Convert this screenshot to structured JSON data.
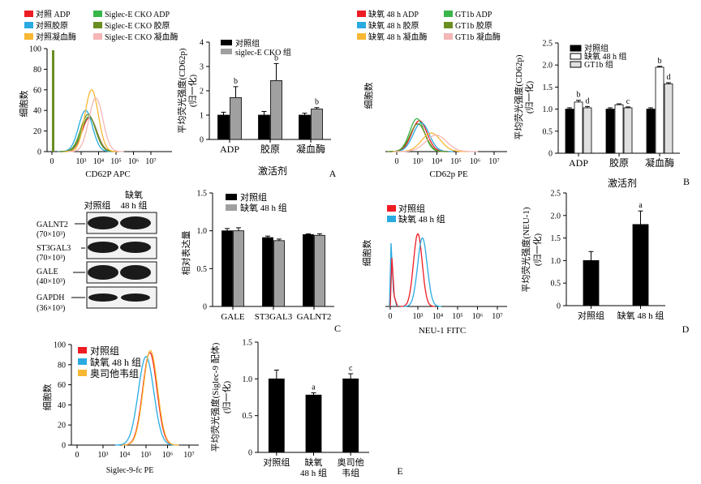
{
  "panels": {
    "A": {
      "letter": "A",
      "flow": {
        "xlabel": "CD62P APC",
        "ylabel": "细胞数",
        "legend": [
          {
            "label": "对照 ADP",
            "color": "#ee1c24"
          },
          {
            "label": "Siglec-E CKO ADP",
            "color": "#39b54a"
          },
          {
            "label": "对照胶原",
            "color": "#29abe2"
          },
          {
            "label": "Siglec-E CKO 胶原",
            "color": "#6b8e23"
          },
          {
            "label": "对照凝血酶",
            "color": "#f7b733"
          },
          {
            "label": "Siglec-E CKO 凝血酶",
            "color": "#f4b6b6"
          }
        ],
        "yticks": [
          "0",
          "20",
          "40",
          "60",
          "80",
          "100"
        ],
        "xticks": [
          "0",
          "10³",
          "10⁴",
          "10⁵",
          "10⁶",
          "10⁷"
        ]
      },
      "bar": {
        "legend": [
          "对照组",
          "siglec-E CKO 组"
        ],
        "ylabel_lines": [
          "平均荧光强度(CD62p)",
          "(归一化)"
        ],
        "yticks": [
          "0",
          "1",
          "2",
          "3",
          "4"
        ],
        "xtitle": "激活剂"
      }
    },
    "B": {
      "letter": "B",
      "flow": {
        "xlabel": "CD62p PE",
        "ylabel": "细胞数",
        "legend": [
          {
            "label": "缺氧 48 h ADP",
            "color": "#ee1c24"
          },
          {
            "label": "GT1b ADP",
            "color": "#39b54a"
          },
          {
            "label": "缺氧 48 h 胶原",
            "color": "#29abe2"
          },
          {
            "label": "GT1b 胶原",
            "color": "#6b8e23"
          },
          {
            "label": "缺氧 48 h 凝血酶",
            "color": "#f7b733"
          },
          {
            "label": "GT1b 凝血酶",
            "color": "#f4b6b6"
          }
        ],
        "xticks": [
          "0",
          "10³",
          "10⁴",
          "10⁵",
          "10⁶",
          "10⁷"
        ]
      },
      "bar": {
        "legend": [
          "对照组",
          "缺氧 48 h 组",
          "GT1b 组"
        ],
        "ylabel_lines": [
          "平均荧光强度(CD62p)",
          "(归一化)"
        ],
        "yticks": [
          "0",
          "0.5",
          "1.0",
          "1.5",
          "2.0",
          "2.5"
        ],
        "xtitle": "激活剂"
      }
    },
    "C": {
      "letter": "C",
      "blot": {
        "col_labels": [
          "对照组",
          "缺氧",
          "48 h 组"
        ],
        "rows": [
          {
            "name": "GALNT2",
            "size": "(70×10³)"
          },
          {
            "name": "ST3GAL3",
            "size": "(70×10³)"
          },
          {
            "name": "GALE",
            "size": "(40×10³)"
          },
          {
            "name": "GAPDH",
            "size": "(36×10³)"
          }
        ]
      },
      "bar": {
        "legend": [
          "对照组",
          "缺氧 48 h 组"
        ],
        "ylabel": "相对表达量",
        "yticks": [
          "0",
          "0.5",
          "1.0",
          "1.5"
        ]
      },
      "flow": {
        "legend": [
          {
            "label": "对照组",
            "color": "#ee1c24"
          },
          {
            "label": "缺氧 48 h 组",
            "color": "#29abe2"
          }
        ],
        "xlabel": "NEU-1 FITC",
        "ylabel": "细胞数",
        "xticks": [
          "0",
          "10³",
          "10⁴",
          "10⁵",
          "10⁶",
          "10⁷"
        ]
      }
    },
    "D": {
      "letter": "D",
      "bar": {
        "ylabel_lines": [
          "平均荧光强度(NEU-1)",
          "(归一化)"
        ],
        "yticks": [
          "0",
          "0.5",
          "1.0",
          "1.5",
          "2.0",
          "2.5"
        ]
      }
    },
    "E": {
      "letter": "E",
      "flow": {
        "legend": [
          {
            "label": "对照组",
            "color": "#ee1c24"
          },
          {
            "label": "缺氧 48 h 组",
            "color": "#29abe2"
          },
          {
            "label": "奥司他韦组",
            "color": "#f7b733"
          }
        ],
        "xlabel": "Siglec-9-fc PE",
        "ylabel": "细胞数",
        "yticks": [
          "0",
          "20",
          "40",
          "60",
          "80",
          "100"
        ],
        "xticks": [
          "0",
          "10³",
          "10⁴",
          "10⁵",
          "10⁶",
          "10⁷"
        ]
      },
      "bar": {
        "ylabel_lines": [
          "平均荧光强度(Siglec-9 配体)",
          "(归一化)"
        ],
        "yticks": [
          "0",
          "0.5",
          "1.0",
          "1.5"
        ]
      }
    }
  },
  "chart_data": [
    {
      "id": "A-bar",
      "type": "bar",
      "categories": [
        "ADP",
        "胶原",
        "凝血酶"
      ],
      "series": [
        {
          "name": "对照组",
          "values": [
            1.0,
            1.0,
            1.0
          ],
          "errors": [
            0.12,
            0.15,
            0.08
          ],
          "color": "#000000"
        },
        {
          "name": "siglec-E CKO 组",
          "values": [
            1.72,
            2.42,
            1.25
          ],
          "errors": [
            0.45,
            0.7,
            0.06
          ],
          "color": "#a0a0a0"
        }
      ],
      "annotations": [
        {
          "series": 1,
          "index": 0,
          "text": "b"
        },
        {
          "series": 1,
          "index": 1,
          "text": "b"
        },
        {
          "series": 1,
          "index": 2,
          "text": "b"
        }
      ],
      "ylim": [
        0,
        4
      ]
    },
    {
      "id": "B-bar",
      "type": "bar",
      "categories": [
        "ADP",
        "胶原",
        "凝血酶"
      ],
      "series": [
        {
          "name": "对照组",
          "values": [
            1.0,
            1.0,
            1.0
          ],
          "errors": [
            0.03,
            0.03,
            0.03
          ],
          "color": "#000000",
          "fill": "#000000"
        },
        {
          "name": "缺氧 48 h 组",
          "values": [
            1.16,
            1.1,
            1.95
          ],
          "errors": [
            0.04,
            0.02,
            0.02
          ],
          "color": "#000000",
          "fill": "#ffffff"
        },
        {
          "name": "GT1b 组",
          "values": [
            1.03,
            1.03,
            1.57
          ],
          "errors": [
            0.03,
            0.02,
            0.03
          ],
          "color": "#000000",
          "fill": "#e0e0e0"
        }
      ],
      "annotations": [
        {
          "series": 1,
          "index": 0,
          "text": "b"
        },
        {
          "series": 2,
          "index": 0,
          "text": "d"
        },
        {
          "series": 2,
          "index": 1,
          "text": "c"
        },
        {
          "series": 1,
          "index": 2,
          "text": "b"
        },
        {
          "series": 2,
          "index": 2,
          "text": "d"
        }
      ],
      "ylim": [
        0,
        2.5
      ]
    },
    {
      "id": "C-bar",
      "type": "bar",
      "categories": [
        "GALE",
        "ST3GAL3",
        "GALNT2"
      ],
      "series": [
        {
          "name": "对照组",
          "values": [
            1.0,
            0.91,
            0.95
          ],
          "errors": [
            0.03,
            0.02,
            0.01
          ],
          "color": "#000000"
        },
        {
          "name": "缺氧 48 h 组",
          "values": [
            1.0,
            0.87,
            0.94
          ],
          "errors": [
            0.04,
            0.02,
            0.02
          ],
          "color": "#a0a0a0"
        }
      ],
      "ylim": [
        0,
        1.5
      ]
    },
    {
      "id": "D-bar",
      "type": "bar",
      "categories": [
        "对照组",
        "缺氧 48 h 组"
      ],
      "series": [
        {
          "name": "",
          "values": [
            1.0,
            1.8
          ],
          "errors": [
            0.2,
            0.3
          ],
          "color": "#000000"
        }
      ],
      "annotations": [
        {
          "series": 0,
          "index": 1,
          "text": "a"
        }
      ],
      "ylim": [
        0,
        2.5
      ]
    },
    {
      "id": "E-bar",
      "type": "bar",
      "categories": [
        "对照组",
        "缺氧\n48 h 组",
        "奥司他\n韦组"
      ],
      "series": [
        {
          "name": "",
          "values": [
            1.0,
            0.78,
            1.0
          ],
          "errors": [
            0.12,
            0.03,
            0.07
          ],
          "color": "#000000"
        }
      ],
      "annotations": [
        {
          "series": 0,
          "index": 1,
          "text": "a"
        },
        {
          "series": 0,
          "index": 2,
          "text": "c"
        }
      ],
      "ylim": [
        0,
        1.5
      ]
    },
    {
      "id": "A-flow",
      "type": "line",
      "x_scale": "log",
      "series": [
        {
          "name": "对照 ADP",
          "color": "#ee1c24",
          "peak_x": 3000,
          "peak_y": 33,
          "width": 0.42
        },
        {
          "name": "Siglec-E CKO ADP",
          "color": "#39b54a",
          "peak_x": 2800,
          "peak_y": 34,
          "width": 0.42
        },
        {
          "name": "对照胶原",
          "color": "#29abe2",
          "peak_x": 1800,
          "peak_y": 40,
          "width": 0.4
        },
        {
          "name": "Siglec-E CKO 胶原",
          "color": "#6b8e23",
          "peak_x": 2500,
          "peak_y": 36,
          "width": 0.42
        },
        {
          "name": "对照凝血酶",
          "color": "#f7b733",
          "peak_x": 4000,
          "peak_y": 60,
          "width": 0.38
        },
        {
          "name": "Siglec-E CKO 凝血酶",
          "color": "#f4b6b6",
          "peak_x": 7000,
          "peak_y": 52,
          "width": 0.4
        }
      ],
      "ylim": [
        0,
        100
      ]
    },
    {
      "id": "B-flow",
      "type": "line",
      "x_scale": "log",
      "series": [
        {
          "name": "缺氧 48 h ADP",
          "color": "#ee1c24",
          "peak_x": 1200,
          "peak_y": 30,
          "width": 0.4
        },
        {
          "name": "GT1b ADP",
          "color": "#39b54a",
          "peak_x": 900,
          "peak_y": 32,
          "width": 0.38
        },
        {
          "name": "缺氧 48 h 胶原",
          "color": "#29abe2",
          "peak_x": 1500,
          "peak_y": 28,
          "width": 0.42
        },
        {
          "name": "GT1b 胶原",
          "color": "#6b8e23",
          "peak_x": 1000,
          "peak_y": 27,
          "width": 0.4
        },
        {
          "name": "缺氧 48 h 凝血酶",
          "color": "#f7b733",
          "peak_x": 5000,
          "peak_y": 18,
          "width": 0.5
        },
        {
          "name": "GT1b 凝血酶",
          "color": "#f4b6b6",
          "peak_x": 9000,
          "peak_y": 16,
          "width": 0.55
        }
      ],
      "ylim": [
        0,
        100
      ]
    },
    {
      "id": "C-flow",
      "type": "line",
      "x_scale": "log",
      "series": [
        {
          "name": "对照组",
          "color": "#ee1c24",
          "peak_x": 1000,
          "peak_y": 70,
          "width": 0.22
        },
        {
          "name": "缺氧 48 h 组",
          "color": "#29abe2",
          "peak_x": 1700,
          "peak_y": 66,
          "width": 0.24
        }
      ],
      "ylim": [
        0,
        100
      ]
    },
    {
      "id": "E-flow",
      "type": "line",
      "x_scale": "log",
      "series": [
        {
          "name": "对照组",
          "color": "#ee1c24",
          "peak_x": 150000,
          "peak_y": 92,
          "width": 0.33
        },
        {
          "name": "缺氧 48 h 组",
          "color": "#29abe2",
          "peak_x": 100000,
          "peak_y": 88,
          "width": 0.36
        },
        {
          "name": "奥司他韦组",
          "color": "#f7b733",
          "peak_x": 160000,
          "peak_y": 94,
          "width": 0.33
        }
      ],
      "ylim": [
        0,
        100
      ]
    }
  ]
}
